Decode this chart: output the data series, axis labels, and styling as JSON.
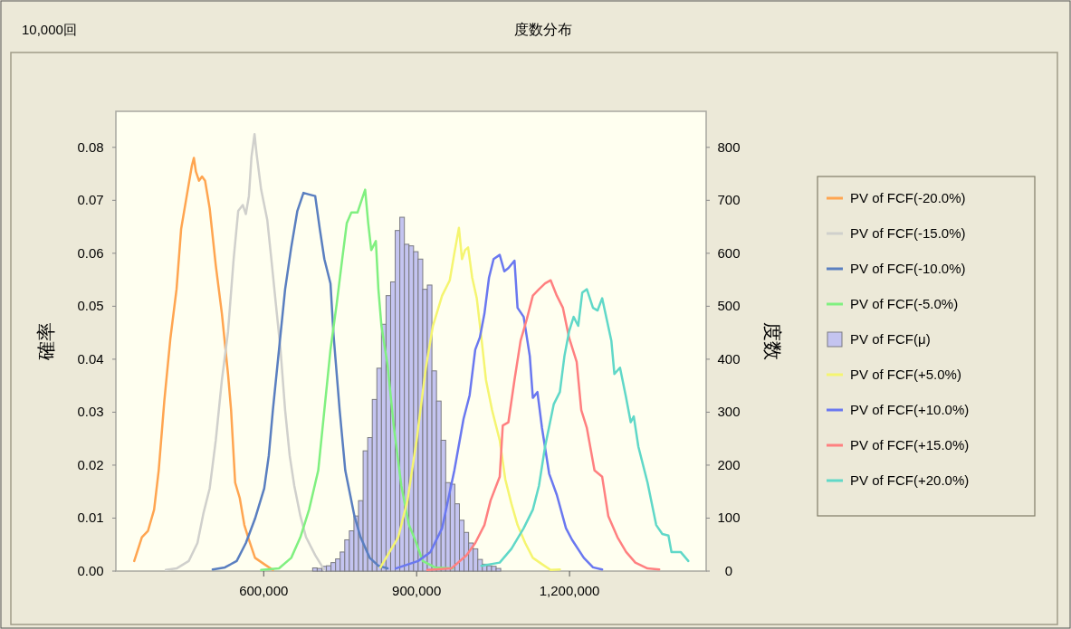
{
  "chart_data": {
    "type": "line",
    "title": "度数分布",
    "ylabel": "確率",
    "y2label": "度数",
    "annotations": [
      "10,000回"
    ],
    "xlim": [
      310000,
      1468000
    ],
    "xticks": [
      {
        "value": 600000,
        "label": "600,000"
      },
      {
        "value": 900000,
        "label": "900,000"
      },
      {
        "value": 1200000,
        "label": "1,200,000"
      }
    ],
    "ylim": [
      0,
      0.0868
    ],
    "yticks": [
      {
        "value": 0,
        "label": "0.00"
      },
      {
        "value": 0.01,
        "label": "0.01"
      },
      {
        "value": 0.02,
        "label": "0.02"
      },
      {
        "value": 0.03,
        "label": "0.03"
      },
      {
        "value": 0.04,
        "label": "0.04"
      },
      {
        "value": 0.05,
        "label": "0.05"
      },
      {
        "value": 0.06,
        "label": "0.06"
      },
      {
        "value": 0.07,
        "label": "0.07"
      },
      {
        "value": 0.08,
        "label": "0.08"
      }
    ],
    "y2lim": [
      0,
      868
    ],
    "y2ticks": [
      0,
      100,
      200,
      300,
      400,
      500,
      600,
      700,
      800
    ],
    "grid": false,
    "legend": "right",
    "marker": "none",
    "line_style": "solid",
    "series": [
      {
        "name": "PV of FCF(-20.0%)",
        "color": "#ffa550",
        "x": [
          346000,
          361000,
          373000,
          385000,
          394000,
          405000,
          417000,
          429000,
          438000,
          450000,
          459000,
          463000,
          467000,
          473000,
          479000,
          485000,
          494000,
          506000,
          518000,
          530000,
          536000,
          544000,
          553000,
          562000,
          571000,
          583000,
          601000,
          618000
        ],
        "values": [
          0.0019,
          0.0064,
          0.0076,
          0.0116,
          0.019,
          0.0321,
          0.044,
          0.0532,
          0.0646,
          0.0714,
          0.0765,
          0.078,
          0.0754,
          0.0737,
          0.0745,
          0.0737,
          0.0685,
          0.0577,
          0.0486,
          0.0372,
          0.0304,
          0.0167,
          0.0138,
          0.0087,
          0.0059,
          0.0025,
          0.0013,
          0.0002
        ]
      },
      {
        "name": "PV of FCF(-15.0%)",
        "color": "#d0d0cc",
        "x": [
          408000,
          429000,
          453000,
          470000,
          482000,
          494000,
          506000,
          518000,
          530000,
          541000,
          550000,
          559000,
          565000,
          571000,
          576000,
          582000,
          586000,
          595000,
          607000,
          615000,
          624000,
          633000,
          642000,
          651000,
          660000,
          672000,
          683000,
          701000,
          719000
        ],
        "values": [
          0.0002,
          0.0005,
          0.0019,
          0.0053,
          0.011,
          0.0156,
          0.0247,
          0.0361,
          0.0452,
          0.0589,
          0.068,
          0.0691,
          0.0674,
          0.0708,
          0.0782,
          0.0825,
          0.0788,
          0.072,
          0.0663,
          0.0589,
          0.0503,
          0.0418,
          0.0304,
          0.0218,
          0.0161,
          0.0104,
          0.0064,
          0.003,
          0.0002
        ]
      },
      {
        "name": "PV of FCF(-10.0%)",
        "color": "#5a7fc0",
        "x": [
          500000,
          524000,
          547000,
          565000,
          583000,
          601000,
          610000,
          618000,
          630000,
          642000,
          654000,
          666000,
          678000,
          689000,
          701000,
          710000,
          719000,
          731000,
          737000,
          749000,
          760000,
          778000,
          790000,
          808000,
          825000,
          843000
        ],
        "values": [
          0.0003,
          0.0007,
          0.0019,
          0.0053,
          0.0099,
          0.0156,
          0.0218,
          0.0304,
          0.0418,
          0.0532,
          0.0611,
          0.068,
          0.0714,
          0.0711,
          0.0708,
          0.0646,
          0.0589,
          0.0543,
          0.0446,
          0.0304,
          0.019,
          0.0104,
          0.0064,
          0.0025,
          0.001,
          0.0005
        ]
      },
      {
        "name": "PV of FCF(-5.0%)",
        "color": "#80f080",
        "x": [
          595000,
          630000,
          654000,
          672000,
          689000,
          707000,
          719000,
          731000,
          743000,
          754000,
          763000,
          772000,
          784000,
          793000,
          799000,
          805000,
          811000,
          820000,
          825000,
          831000,
          843000,
          855000,
          870000,
          885000,
          897000,
          912000,
          936000,
          971000
        ],
        "values": [
          0.0002,
          0.0005,
          0.0025,
          0.0064,
          0.0116,
          0.019,
          0.0304,
          0.0418,
          0.0503,
          0.0589,
          0.0657,
          0.0677,
          0.0677,
          0.0703,
          0.072,
          0.0657,
          0.0606,
          0.0623,
          0.0532,
          0.0463,
          0.0389,
          0.0275,
          0.0161,
          0.0087,
          0.0059,
          0.0019,
          0.0007,
          0.0005
        ]
      },
      {
        "name": "PV of FCF(μ)",
        "type": "histogram",
        "axis": "y2",
        "color": "#c4c4f0",
        "bins": [
          696000,
          705000,
          714000,
          723000,
          732000,
          741000,
          750000,
          759000,
          768000,
          777000,
          786000,
          795000,
          804000,
          813000,
          822000,
          831000,
          840000,
          849000,
          858000,
          867000,
          876000,
          885000,
          894000,
          903000,
          912000,
          921000,
          930000,
          939000,
          948000,
          957000,
          966000,
          975000,
          984000,
          993000,
          1002000,
          1011000,
          1020000,
          1029000,
          1038000,
          1047000,
          1056000,
          1065000
        ],
        "values": [
          6,
          5,
          9,
          10,
          16,
          23,
          36,
          59,
          76,
          104,
          133,
          227,
          252,
          324,
          383,
          466,
          520,
          546,
          643,
          668,
          617,
          614,
          603,
          589,
          532,
          540,
          378,
          321,
          247,
          167,
          164,
          127,
          96,
          73,
          53,
          42,
          22,
          13,
          10,
          9,
          5
        ]
      },
      {
        "name": "PV of FCF(+5.0%)",
        "color": "#f5f570",
        "x": [
          829000,
          864000,
          882000,
          900000,
          918000,
          932000,
          950000,
          965000,
          974000,
          983000,
          989000,
          995000,
          1001000,
          1009000,
          1018000,
          1027000,
          1036000,
          1048000,
          1063000,
          1074000,
          1086000,
          1098000,
          1113000,
          1128000,
          1146000,
          1163000,
          1181000
        ],
        "values": [
          0.0007,
          0.0064,
          0.0133,
          0.0247,
          0.0383,
          0.0463,
          0.052,
          0.0549,
          0.06,
          0.0648,
          0.0589,
          0.0606,
          0.0611,
          0.0554,
          0.0515,
          0.0441,
          0.0361,
          0.0304,
          0.0247,
          0.0173,
          0.0127,
          0.0087,
          0.0053,
          0.0025,
          0.0013,
          0.0002,
          0.0003
        ]
      },
      {
        "name": "PV of FCF(+10.0%)",
        "color": "#6a78f0",
        "x": [
          859000,
          903000,
          927000,
          950000,
          974000,
          992000,
          1004000,
          1015000,
          1024000,
          1033000,
          1042000,
          1051000,
          1063000,
          1072000,
          1080000,
          1092000,
          1098000,
          1110000,
          1122000,
          1128000,
          1137000,
          1146000,
          1160000,
          1175000,
          1193000,
          1205000,
          1228000,
          1246000,
          1264000
        ],
        "values": [
          0.0005,
          0.0019,
          0.0036,
          0.0081,
          0.019,
          0.0287,
          0.0332,
          0.0418,
          0.0441,
          0.0486,
          0.0554,
          0.0589,
          0.0597,
          0.0566,
          0.0572,
          0.0586,
          0.0497,
          0.048,
          0.0406,
          0.0327,
          0.0338,
          0.027,
          0.0184,
          0.0144,
          0.0081,
          0.0059,
          0.0025,
          0.0007,
          0.0003
        ]
      },
      {
        "name": "PV of FCF(+15.0%)",
        "color": "#ff8080",
        "x": [
          921000,
          968000,
          998000,
          1015000,
          1033000,
          1045000,
          1063000,
          1069000,
          1080000,
          1092000,
          1104000,
          1116000,
          1128000,
          1140000,
          1152000,
          1163000,
          1175000,
          1187000,
          1199000,
          1214000,
          1223000,
          1234000,
          1249000,
          1264000,
          1276000,
          1294000,
          1311000,
          1329000,
          1353000,
          1376000
        ],
        "values": [
          0.0002,
          0.0005,
          0.003,
          0.0053,
          0.0087,
          0.0133,
          0.0178,
          0.0275,
          0.0281,
          0.0361,
          0.0435,
          0.0475,
          0.052,
          0.0532,
          0.0543,
          0.0549,
          0.052,
          0.0497,
          0.0441,
          0.0395,
          0.0304,
          0.027,
          0.019,
          0.0178,
          0.0104,
          0.0064,
          0.0036,
          0.0016,
          0.0005,
          0.0003
        ]
      },
      {
        "name": "PV of FCF(+20.0%)",
        "color": "#60d8c8",
        "x": [
          1027000,
          1063000,
          1086000,
          1110000,
          1128000,
          1140000,
          1152000,
          1169000,
          1181000,
          1190000,
          1199000,
          1208000,
          1217000,
          1225000,
          1234000,
          1246000,
          1255000,
          1264000,
          1282000,
          1288000,
          1299000,
          1311000,
          1320000,
          1326000,
          1335000,
          1353000,
          1370000,
          1382000,
          1394000,
          1400000,
          1418000,
          1433000
        ],
        "values": [
          0.001,
          0.0016,
          0.0042,
          0.0081,
          0.0116,
          0.0161,
          0.0235,
          0.0315,
          0.0338,
          0.0406,
          0.0452,
          0.048,
          0.0463,
          0.0526,
          0.0532,
          0.0497,
          0.0492,
          0.0515,
          0.0435,
          0.0372,
          0.0384,
          0.0327,
          0.0281,
          0.0292,
          0.0235,
          0.0167,
          0.0087,
          0.007,
          0.0067,
          0.0036,
          0.0036,
          0.0019
        ]
      }
    ]
  }
}
